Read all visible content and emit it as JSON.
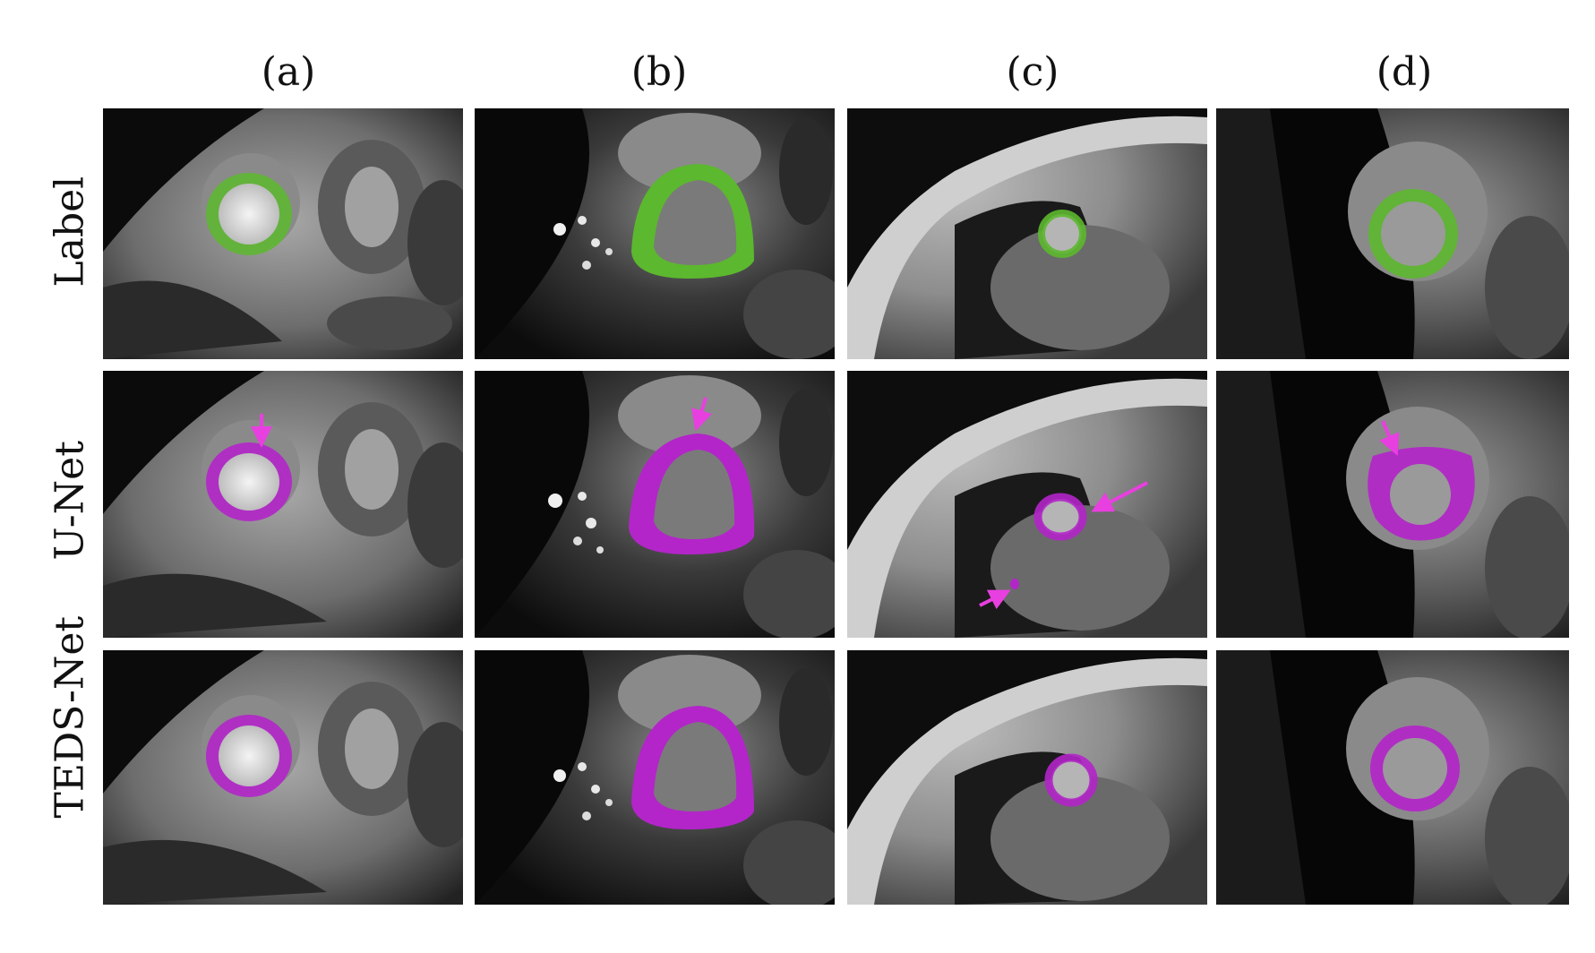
{
  "columns": [
    {
      "label": "(a)"
    },
    {
      "label": "(b)"
    },
    {
      "label": "(c)"
    },
    {
      "label": "(d)"
    }
  ],
  "rows": [
    {
      "label": "Label"
    },
    {
      "label": "U-Net"
    },
    {
      "label": "TEDS-Net"
    }
  ],
  "colors": {
    "label_overlay": "#5cb82e",
    "prediction_overlay": "#b325c9",
    "arrow": "#e83fe0"
  }
}
